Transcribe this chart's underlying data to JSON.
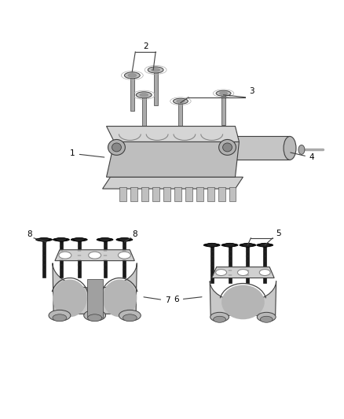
{
  "background_color": "#ffffff",
  "fig_width": 4.38,
  "fig_height": 5.33,
  "dpi": 100,
  "line_color": "#404040",
  "line_width": 0.8,
  "gray_fill": "#c8c8c8",
  "gray_dark": "#888888",
  "gray_light": "#e0e0e0",
  "gray_mid": "#aaaaaa",
  "black_bolt": "#1a1a1a",
  "label_fontsize": 7.5,
  "parts": {
    "bolt_light_shaft_color": "#999999",
    "bolt_light_head_color": "#bbbbbb",
    "bolt_dark_shaft_color": "#1a1a1a",
    "bolt_dark_head_color": "#2a2a2a"
  }
}
